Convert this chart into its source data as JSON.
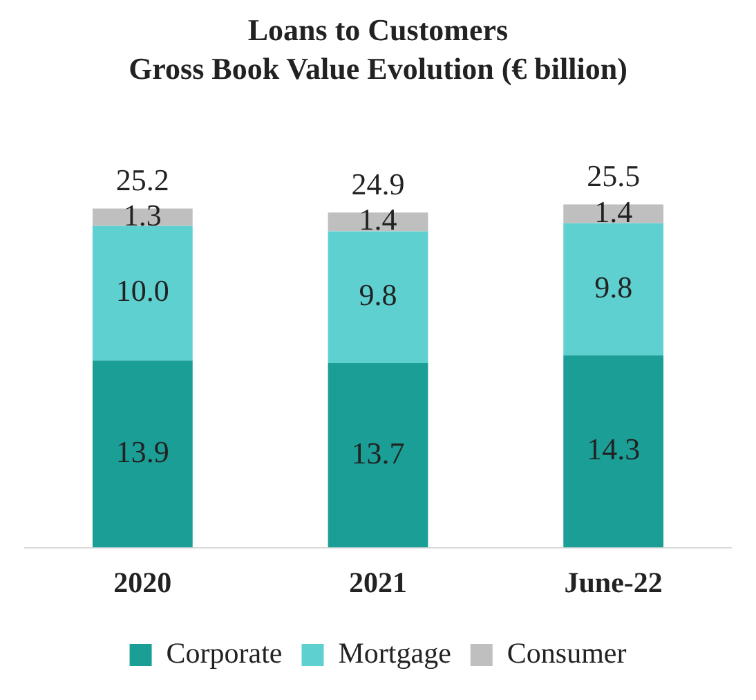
{
  "chart_data": {
    "type": "bar",
    "title": "Loans to Customers",
    "subtitle": "Gross Book Value Evolution (€ billion)",
    "categories": [
      "2020",
      "2021",
      "June-22"
    ],
    "stacked": true,
    "legend": "bottom",
    "grid": false,
    "series": [
      {
        "name": "Corporate",
        "color": "#1a9e96",
        "values": [
          13.9,
          13.7,
          14.3
        ],
        "value_labels": [
          "13.9",
          "13.7",
          "14.3"
        ]
      },
      {
        "name": "Mortgage",
        "color": "#5fd0d0",
        "values": [
          10.0,
          9.8,
          9.8
        ],
        "value_labels": [
          "10.0",
          "9.8",
          "9.8"
        ]
      },
      {
        "name": "Consumer",
        "color": "#bfbfbf",
        "values": [
          1.3,
          1.4,
          1.4
        ],
        "value_labels": [
          "1.3",
          "1.4",
          "1.4"
        ]
      }
    ],
    "totals": [
      "25.2",
      "24.9",
      "25.5"
    ]
  }
}
